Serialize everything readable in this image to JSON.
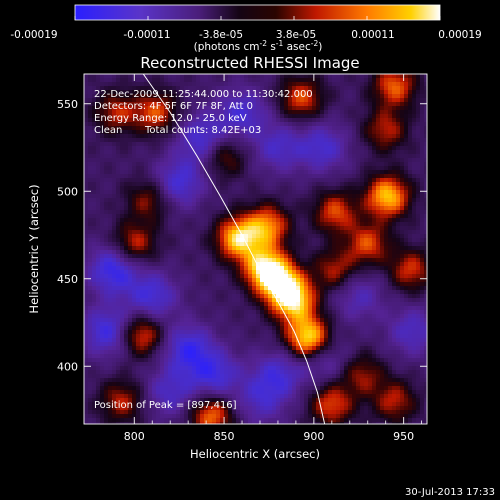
{
  "colorbar": {
    "ticks": [
      "-0.00019",
      "-0.00011",
      "-3.8e-05",
      "3.8e-05",
      "0.00011",
      "0.00019"
    ],
    "unit": {
      "main": "(photons cm",
      "exp1": "-2",
      "mid1": " s",
      "exp2": "-1",
      "mid2": " asec",
      "exp3": "-2",
      "end": ")"
    }
  },
  "chart_data": {
    "type": "heatmap",
    "title": "Reconstructed RHESSI Image",
    "xlabel": "Heliocentric X (arcsec)",
    "ylabel": "Heliocentric Y (arcsec)",
    "xlim": [
      772,
      963
    ],
    "ylim": [
      367,
      567
    ],
    "x_ticks": [
      800,
      850,
      900,
      950
    ],
    "y_ticks": [
      400,
      450,
      500,
      550
    ],
    "color_range": [
      -0.00019,
      0.00019
    ],
    "colormap": "blue-purple-black-red-yellow-white",
    "sources": [
      {
        "x": 897,
        "y": 416,
        "peak": 1.0
      },
      {
        "x": 889,
        "y": 437,
        "peak": 0.85
      },
      {
        "x": 882,
        "y": 447,
        "peak": 0.8
      },
      {
        "x": 873,
        "y": 456,
        "peak": 0.95
      },
      {
        "x": 858,
        "y": 473,
        "peak": 0.9
      },
      {
        "x": 874,
        "y": 480,
        "peak": 0.7
      },
      {
        "x": 941,
        "y": 497,
        "peak": 0.85
      },
      {
        "x": 930,
        "y": 470,
        "peak": 0.55
      },
      {
        "x": 912,
        "y": 488,
        "peak": 0.55
      },
      {
        "x": 954,
        "y": 455,
        "peak": 0.5
      },
      {
        "x": 912,
        "y": 455,
        "peak": 0.45
      },
      {
        "x": 927,
        "y": 395,
        "peak": 0.4
      },
      {
        "x": 945,
        "y": 380,
        "peak": 0.45
      },
      {
        "x": 910,
        "y": 378,
        "peak": 0.55
      },
      {
        "x": 843,
        "y": 372,
        "peak": 0.65
      },
      {
        "x": 793,
        "y": 380,
        "peak": 0.45
      },
      {
        "x": 804,
        "y": 418,
        "peak": 0.6
      },
      {
        "x": 800,
        "y": 470,
        "peak": 0.5
      },
      {
        "x": 808,
        "y": 495,
        "peak": 0.4
      },
      {
        "x": 790,
        "y": 545,
        "peak": 0.45
      },
      {
        "x": 812,
        "y": 545,
        "peak": 0.55
      },
      {
        "x": 850,
        "y": 520,
        "peak": 0.4
      },
      {
        "x": 893,
        "y": 553,
        "peak": 0.55
      },
      {
        "x": 945,
        "y": 560,
        "peak": 0.6
      },
      {
        "x": 940,
        "y": 535,
        "peak": 0.45
      }
    ],
    "negatives": [
      {
        "x": 788,
        "y": 455,
        "depth": 0.6
      },
      {
        "x": 810,
        "y": 440,
        "depth": 0.5
      },
      {
        "x": 785,
        "y": 420,
        "depth": 0.55
      },
      {
        "x": 830,
        "y": 410,
        "depth": 0.55
      },
      {
        "x": 845,
        "y": 395,
        "depth": 0.5
      },
      {
        "x": 820,
        "y": 385,
        "depth": 0.4
      },
      {
        "x": 838,
        "y": 530,
        "depth": 0.5
      },
      {
        "x": 860,
        "y": 545,
        "depth": 0.45
      },
      {
        "x": 825,
        "y": 505,
        "depth": 0.5
      },
      {
        "x": 880,
        "y": 525,
        "depth": 0.4
      },
      {
        "x": 905,
        "y": 525,
        "depth": 0.45
      },
      {
        "x": 925,
        "y": 440,
        "depth": 0.35
      },
      {
        "x": 955,
        "y": 420,
        "depth": 0.4
      },
      {
        "x": 880,
        "y": 395,
        "depth": 0.45
      },
      {
        "x": 870,
        "y": 380,
        "depth": 0.35
      },
      {
        "x": 905,
        "y": 405,
        "depth": 0.35
      }
    ],
    "limb": [
      [
        805,
        567
      ],
      [
        820,
        545
      ],
      [
        835,
        520
      ],
      [
        848,
        497
      ],
      [
        860,
        475
      ],
      [
        870,
        455
      ],
      [
        880,
        437
      ],
      [
        889,
        420
      ],
      [
        896,
        403
      ],
      [
        902,
        385
      ],
      [
        906,
        367
      ]
    ],
    "annotations": {
      "line1": "22-Dec-2009 11:25:44.000 to 11:30:42.000",
      "line2": "Detectors: 4F 5F 6F 7F 8F, Att 0",
      "line3": "Energy Range: 12.0 - 25.0 keV",
      "line4_left": "Clean",
      "line4_right": "Total counts: 8.42E+03",
      "peak": "Position of Peak = [897,416]"
    }
  },
  "footer": {
    "timestamp": "30-Jul-2013 17:33"
  }
}
